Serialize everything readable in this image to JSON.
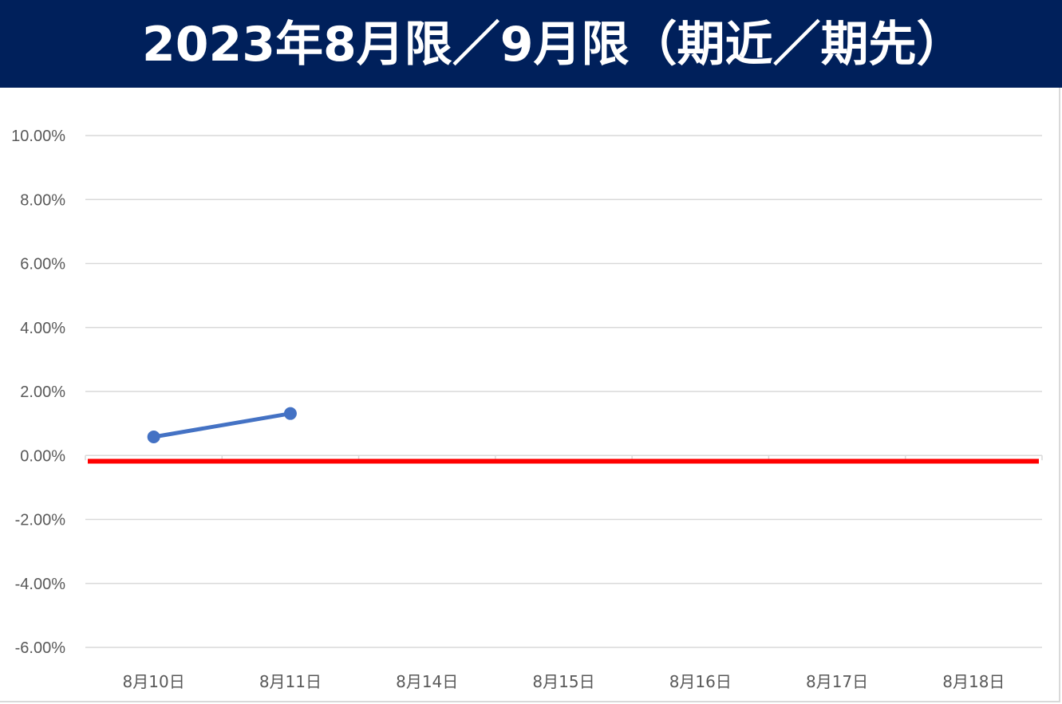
{
  "header": {
    "title": "2023年8月限／9月限（期近／期先）",
    "background_color": "#00205b",
    "text_color": "#ffffff"
  },
  "chart_data": {
    "type": "line",
    "title": "2023年8月限／9月限（期近／期先）",
    "xlabel": "",
    "ylabel": "",
    "categories": [
      "8月10日",
      "8月11日",
      "8月14日",
      "8月15日",
      "8月16日",
      "8月17日",
      "8月18日"
    ],
    "ylim": [
      -0.06,
      0.1
    ],
    "ytick_step": 0.02,
    "yticks": [
      "-6.00%",
      "-4.00%",
      "-2.00%",
      "0.00%",
      "2.00%",
      "4.00%",
      "6.00%",
      "8.00%",
      "10.00%"
    ],
    "y_format": "percent_2dp",
    "grid": true,
    "legend": "none",
    "series": [
      {
        "values": [
          0.0058,
          0.0131,
          null,
          null,
          null,
          null,
          null
        ],
        "color": "#4472c4",
        "markers": true
      }
    ],
    "reference_lines": [
      {
        "y": -0.0018,
        "color": "#ff0000"
      }
    ]
  }
}
